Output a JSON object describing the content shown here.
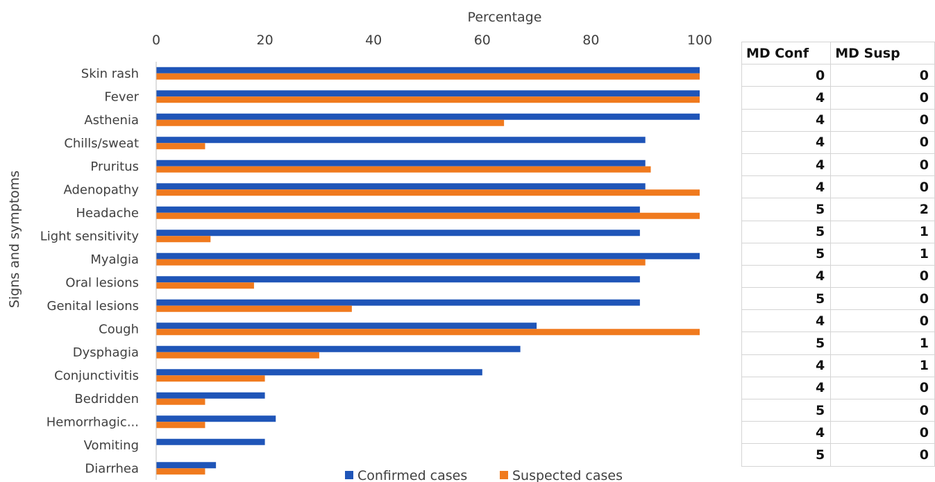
{
  "chart_data": {
    "type": "bar",
    "orientation": "horizontal",
    "xlabel": "Percentage",
    "ylabel": "Signs and symptoms",
    "xlim": [
      0,
      100
    ],
    "xticks": [
      "0",
      "20",
      "40",
      "60",
      "80",
      "100"
    ],
    "categories": [
      "Skin rash",
      "Fever",
      "Asthenia",
      "Chills/sweat",
      "Pruritus",
      "Adenopathy",
      "Headache",
      "Light sensitivity",
      "Myalgia",
      "Oral lesions",
      "Genital lesions",
      "Cough",
      "Dysphagia",
      "Conjunctivitis",
      "Bedridden",
      "Hemorrhagic...",
      "Vomiting",
      "Diarrhea"
    ],
    "series": [
      {
        "name": "Confirmed cases",
        "color": "#1f55b8",
        "values": [
          100,
          100,
          100,
          90,
          90,
          90,
          89,
          89,
          100,
          89,
          89,
          70,
          67,
          60,
          20,
          22,
          20,
          11
        ]
      },
      {
        "name": "Suspected cases",
        "color": "#f07a1e",
        "values": [
          100,
          100,
          64,
          9,
          91,
          100,
          100,
          10,
          90,
          18,
          36,
          100,
          30,
          20,
          9,
          9,
          0,
          9
        ]
      }
    ],
    "grid": false,
    "legend": "bottom"
  },
  "table": {
    "headers": [
      "MD Conf",
      "MD Susp"
    ],
    "rows": [
      [
        "0",
        "0"
      ],
      [
        "4",
        "0"
      ],
      [
        "4",
        "0"
      ],
      [
        "4",
        "0"
      ],
      [
        "4",
        "0"
      ],
      [
        "4",
        "0"
      ],
      [
        "5",
        "2"
      ],
      [
        "5",
        "1"
      ],
      [
        "5",
        "1"
      ],
      [
        "4",
        "0"
      ],
      [
        "5",
        "0"
      ],
      [
        "4",
        "0"
      ],
      [
        "5",
        "1"
      ],
      [
        "4",
        "1"
      ],
      [
        "4",
        "0"
      ],
      [
        "5",
        "0"
      ],
      [
        "4",
        "0"
      ],
      [
        "5",
        "0"
      ]
    ]
  }
}
